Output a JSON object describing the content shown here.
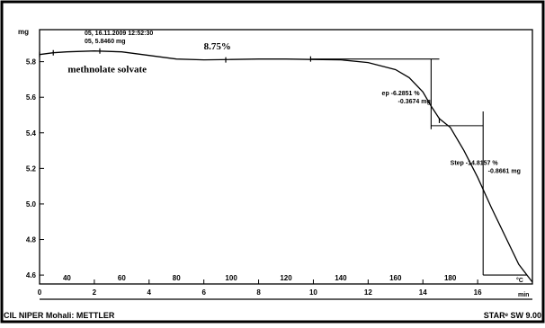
{
  "chart_data": {
    "type": "line",
    "title": "",
    "header": [
      "05, 16.11.2009 12:52:30",
      "05, 5.8460 mg"
    ],
    "ylabel": "mg",
    "ylim": [
      4.55,
      5.98
    ],
    "yticks": [
      4.6,
      4.8,
      5.0,
      5.2,
      5.4,
      5.6,
      5.8
    ],
    "ytick_labels": [
      "4.6",
      "4.8",
      "5.0",
      "5.2",
      "5.4",
      "5.6",
      "5.8"
    ],
    "x_temperature": {
      "label": "°C",
      "ticks": [
        40,
        60,
        80,
        100,
        120,
        140,
        160,
        180
      ],
      "tick_labels": [
        "40",
        "60",
        "80",
        "100",
        "120",
        "140",
        "160",
        "180"
      ]
    },
    "x_time": {
      "label": "min",
      "xlim": [
        0,
        18
      ],
      "ticks": [
        0,
        2,
        4,
        6,
        8,
        10,
        12,
        14,
        16
      ],
      "tick_labels": [
        "0",
        "2",
        "4",
        "6",
        "8",
        "10",
        "12",
        "14",
        "16"
      ]
    },
    "series": [
      {
        "name": "",
        "x": [
          0,
          0.5,
          1,
          2,
          3,
          4,
          5,
          6,
          7,
          8,
          9,
          10,
          11,
          12,
          13,
          13.5,
          14,
          14.3,
          14.6,
          15,
          15.5,
          16,
          16.5,
          17,
          17.5,
          18
        ],
        "y": [
          5.84,
          5.85,
          5.855,
          5.86,
          5.855,
          5.835,
          5.815,
          5.81,
          5.812,
          5.815,
          5.815,
          5.812,
          5.81,
          5.795,
          5.755,
          5.71,
          5.63,
          5.55,
          5.48,
          5.43,
          5.3,
          5.15,
          4.98,
          4.82,
          4.66,
          4.56
        ],
        "color": "#000000"
      }
    ],
    "annotations": [
      {
        "text": "8.75%",
        "x": 6,
        "y": 5.87
      },
      {
        "text": "methnolate solvate",
        "x": 3,
        "y": 5.74
      },
      {
        "lines": [
          "ep  -6.2851 %",
          "-0.3674 mg"
        ],
        "x": 12.5,
        "y": 5.61
      },
      {
        "lines": [
          "Step  -14.8157 %",
          "-0.8661 mg"
        ],
        "x": 15.0,
        "y": 5.22
      }
    ]
  },
  "footer": {
    "left": "CIL NIPER  Mohali: METTLER",
    "right": "STARᵉ SW 9.00"
  }
}
